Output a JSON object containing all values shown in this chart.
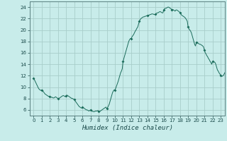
{
  "xlabel": "Humidex (Indice chaleur)",
  "background_color": "#c8ecea",
  "line_color": "#1a6b5a",
  "marker_color": "#1a6b5a",
  "grid_color": "#a8ceca",
  "xlim": [
    -0.5,
    23.5
  ],
  "ylim": [
    5.0,
    25.0
  ],
  "yticks": [
    6,
    8,
    10,
    12,
    14,
    16,
    18,
    20,
    22,
    24
  ],
  "xticks": [
    0,
    1,
    2,
    3,
    4,
    5,
    6,
    7,
    8,
    9,
    10,
    11,
    12,
    13,
    14,
    15,
    16,
    17,
    18,
    19,
    20,
    21,
    22,
    23
  ],
  "x": [
    0,
    0.1,
    0.2,
    0.3,
    0.4,
    0.5,
    0.6,
    0.7,
    0.8,
    0.9,
    1.0,
    1.1,
    1.2,
    1.3,
    1.4,
    1.5,
    1.6,
    1.7,
    1.8,
    1.9,
    2.0,
    2.1,
    2.2,
    2.3,
    2.4,
    2.5,
    2.6,
    2.7,
    2.8,
    2.9,
    3.0,
    3.1,
    3.2,
    3.3,
    3.4,
    3.5,
    3.6,
    3.7,
    3.8,
    3.9,
    4.0,
    4.1,
    4.2,
    4.3,
    4.4,
    4.5,
    4.6,
    4.7,
    4.8,
    4.9,
    5.0,
    5.1,
    5.2,
    5.3,
    5.4,
    5.5,
    5.6,
    5.7,
    5.8,
    5.9,
    6.0,
    6.1,
    6.2,
    6.3,
    6.4,
    6.5,
    6.6,
    6.7,
    6.8,
    6.9,
    7.0,
    7.1,
    7.2,
    7.3,
    7.4,
    7.5,
    7.6,
    7.7,
    7.8,
    7.9,
    8.0,
    8.1,
    8.2,
    8.3,
    8.4,
    8.5,
    8.6,
    8.7,
    8.8,
    8.9,
    9.0,
    9.1,
    9.2,
    9.3,
    9.4,
    9.5,
    9.6,
    9.7,
    9.8,
    9.9,
    10.0,
    10.1,
    10.2,
    10.3,
    10.4,
    10.5,
    10.6,
    10.7,
    10.8,
    10.9,
    11.0,
    11.1,
    11.2,
    11.3,
    11.4,
    11.5,
    11.6,
    11.7,
    11.8,
    11.9,
    12.0,
    12.1,
    12.2,
    12.3,
    12.4,
    12.5,
    12.6,
    12.7,
    12.8,
    12.9,
    13.0,
    13.1,
    13.2,
    13.3,
    13.4,
    13.5,
    13.6,
    13.7,
    13.8,
    13.9,
    14.0,
    14.1,
    14.2,
    14.3,
    14.4,
    14.5,
    14.6,
    14.7,
    14.8,
    14.9,
    15.0,
    15.1,
    15.2,
    15.3,
    15.4,
    15.5,
    15.6,
    15.7,
    15.8,
    15.9,
    16.0,
    16.1,
    16.2,
    16.3,
    16.4,
    16.5,
    16.6,
    16.7,
    16.8,
    16.9,
    17.0,
    17.1,
    17.2,
    17.3,
    17.4,
    17.5,
    17.6,
    17.7,
    17.8,
    17.9,
    18.0,
    18.1,
    18.2,
    18.3,
    18.4,
    18.5,
    18.6,
    18.7,
    18.8,
    18.9,
    19.0,
    19.1,
    19.2,
    19.3,
    19.4,
    19.5,
    19.6,
    19.7,
    19.8,
    19.9,
    20.0,
    20.1,
    20.2,
    20.3,
    20.4,
    20.5,
    20.6,
    20.7,
    20.8,
    20.9,
    21.0,
    21.1,
    21.2,
    21.3,
    21.4,
    21.5,
    21.6,
    21.7,
    21.8,
    21.9,
    22.0,
    22.1,
    22.2,
    22.3,
    22.4,
    22.5,
    22.6,
    22.7,
    22.8,
    22.9,
    23.0,
    23.1,
    23.2,
    23.3,
    23.4,
    23.5
  ],
  "y": [
    11.5,
    11.3,
    11.0,
    10.7,
    10.4,
    10.1,
    9.8,
    9.6,
    9.5,
    9.4,
    9.5,
    9.4,
    9.2,
    9.0,
    8.8,
    8.7,
    8.6,
    8.5,
    8.4,
    8.4,
    8.3,
    8.3,
    8.2,
    8.2,
    8.1,
    8.1,
    8.2,
    8.3,
    8.2,
    8.1,
    8.0,
    8.0,
    8.1,
    8.2,
    8.3,
    8.4,
    8.5,
    8.5,
    8.4,
    8.3,
    8.5,
    8.6,
    8.5,
    8.4,
    8.3,
    8.2,
    8.1,
    8.0,
    8.0,
    7.9,
    7.8,
    7.6,
    7.4,
    7.2,
    7.0,
    6.8,
    6.6,
    6.5,
    6.4,
    6.3,
    6.5,
    6.4,
    6.3,
    6.2,
    6.1,
    6.0,
    6.0,
    5.9,
    5.8,
    5.9,
    6.0,
    5.9,
    5.8,
    5.7,
    5.7,
    5.7,
    5.8,
    5.8,
    5.8,
    5.9,
    5.7,
    5.7,
    5.8,
    5.9,
    6.0,
    6.1,
    6.2,
    6.3,
    6.4,
    6.5,
    6.2,
    6.4,
    6.7,
    7.0,
    7.5,
    8.0,
    8.5,
    9.0,
    9.3,
    9.5,
    9.5,
    9.8,
    10.2,
    10.6,
    11.0,
    11.5,
    12.0,
    12.5,
    12.8,
    13.2,
    14.5,
    15.0,
    15.5,
    16.0,
    16.5,
    17.0,
    17.5,
    18.0,
    18.3,
    18.5,
    18.5,
    18.8,
    19.0,
    19.2,
    19.5,
    19.8,
    20.0,
    20.3,
    20.5,
    21.0,
    21.5,
    21.8,
    22.0,
    22.1,
    22.2,
    22.3,
    22.3,
    22.4,
    22.4,
    22.5,
    22.5,
    22.6,
    22.6,
    22.7,
    22.7,
    22.8,
    22.8,
    22.8,
    22.7,
    22.7,
    22.8,
    22.9,
    23.0,
    23.0,
    23.1,
    23.2,
    23.2,
    23.1,
    23.0,
    23.0,
    23.5,
    23.7,
    23.8,
    23.8,
    23.9,
    24.0,
    24.0,
    23.9,
    23.8,
    23.7,
    23.5,
    23.6,
    23.5,
    23.4,
    23.3,
    23.5,
    23.5,
    23.4,
    23.3,
    23.2,
    23.0,
    22.8,
    22.6,
    22.5,
    22.4,
    22.3,
    22.2,
    22.0,
    21.8,
    21.5,
    20.5,
    20.2,
    20.0,
    19.8,
    19.5,
    19.0,
    18.5,
    18.0,
    17.5,
    17.2,
    17.8,
    17.8,
    17.7,
    17.6,
    17.5,
    17.5,
    17.4,
    17.3,
    17.2,
    17.0,
    16.5,
    16.0,
    15.8,
    15.5,
    15.3,
    15.0,
    14.8,
    14.5,
    14.3,
    14.0,
    14.5,
    14.5,
    14.4,
    14.3,
    14.0,
    13.5,
    13.0,
    12.8,
    12.5,
    12.3,
    12.0,
    11.9,
    11.9,
    12.0,
    12.2,
    12.5
  ],
  "marker_x": [
    0,
    1,
    2,
    3,
    4,
    5,
    6,
    7,
    8,
    9,
    10,
    11,
    12,
    13,
    14,
    15,
    16,
    17,
    18,
    19,
    20,
    21,
    22,
    23
  ],
  "marker_y": [
    11.5,
    9.5,
    8.3,
    8.0,
    8.5,
    7.8,
    6.5,
    6.0,
    5.7,
    6.2,
    9.5,
    14.5,
    18.5,
    21.5,
    22.5,
    22.8,
    23.5,
    23.5,
    23.0,
    20.5,
    17.8,
    16.5,
    14.5,
    12.0
  ]
}
